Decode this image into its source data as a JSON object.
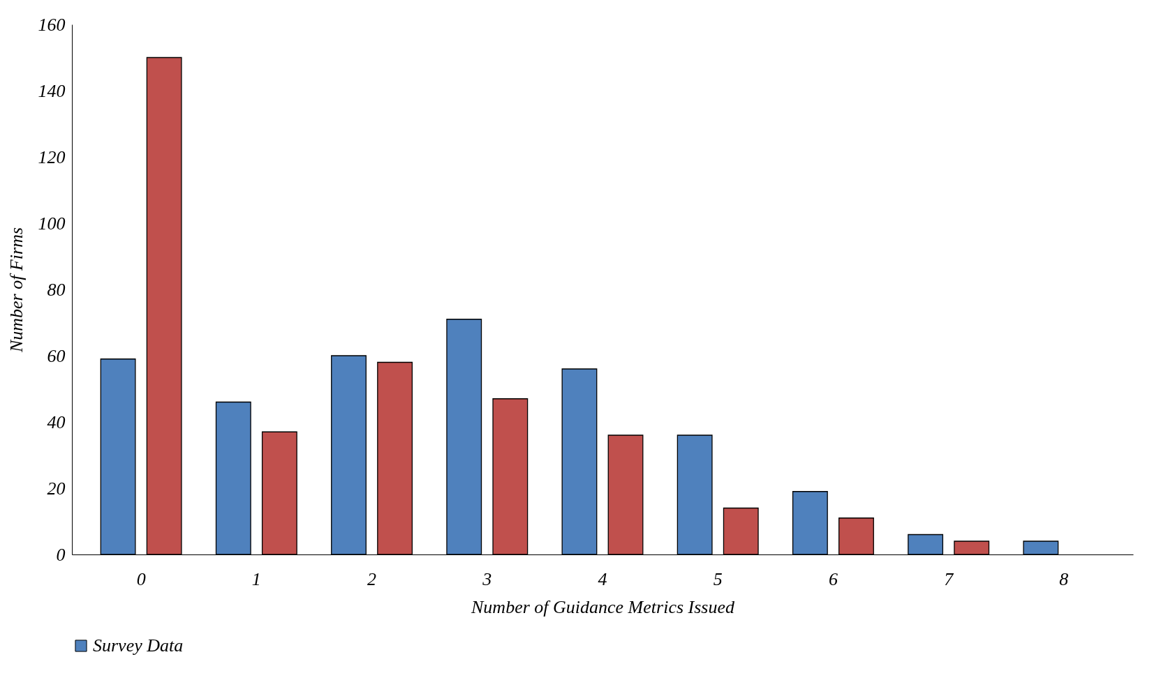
{
  "chart_data": {
    "type": "bar",
    "xlabel": "Number of Guidance Metrics Issued",
    "ylabel": "Number of Firms",
    "categories": [
      "0",
      "1",
      "2",
      "3",
      "4",
      "5",
      "6",
      "7",
      "8"
    ],
    "series": [
      {
        "name": "Survey Data",
        "color": "#4f81bd",
        "values": [
          59,
          46,
          60,
          71,
          56,
          36,
          19,
          6,
          4
        ]
      },
      {
        "color": "#c0504d",
        "values": [
          150,
          37,
          58,
          47,
          36,
          14,
          11,
          4,
          null
        ]
      }
    ],
    "ylim": [
      0,
      160
    ],
    "yticks": [
      0,
      20,
      40,
      60,
      80,
      100,
      120,
      140,
      160
    ],
    "grid": false,
    "legend": "bottom"
  }
}
